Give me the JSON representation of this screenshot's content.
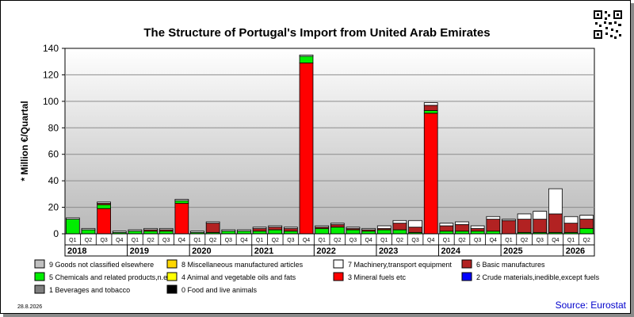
{
  "chart_data": {
    "type": "bar",
    "stacked": true,
    "title": "The Structure of Portugal's Import from United Arab Emirates",
    "ylabel": "* Million €/Quartal",
    "ylim": [
      0,
      140
    ],
    "yticks": [
      0,
      20,
      40,
      60,
      80,
      100,
      120,
      140
    ],
    "grid": true,
    "source": "Source: Eurostat",
    "date": "28.8.2026",
    "years": [
      "2018",
      "2019",
      "2020",
      "2021",
      "2022",
      "2023",
      "2024",
      "2025",
      "2026"
    ],
    "categories": [
      "Q1",
      "Q2",
      "Q3",
      "Q4",
      "Q1",
      "Q2",
      "Q3",
      "Q4",
      "Q1",
      "Q2",
      "Q3",
      "Q4",
      "Q1",
      "Q2",
      "Q3",
      "Q4",
      "Q1",
      "Q2",
      "Q3",
      "Q4",
      "Q1",
      "Q2",
      "Q3",
      "Q4",
      "Q1",
      "Q2",
      "Q3",
      "Q4",
      "Q1",
      "Q2",
      "Q3",
      "Q4",
      "Q1",
      "Q2"
    ],
    "series": [
      {
        "name": "0 Food and live animals",
        "color": "#000000",
        "values": [
          0,
          0,
          0,
          0,
          0,
          0,
          0,
          0,
          0,
          0,
          0,
          0,
          0,
          0,
          0,
          0,
          0,
          0,
          0,
          0,
          0,
          0,
          0,
          0,
          0,
          0,
          0,
          0,
          0,
          0,
          0,
          0,
          0,
          0
        ]
      },
      {
        "name": "1 Beverages and tobacco",
        "color": "#7f7f7f",
        "values": [
          0,
          0,
          0,
          0,
          0,
          0,
          0,
          0,
          0,
          0,
          0,
          0,
          0,
          0,
          0,
          0,
          0,
          0,
          0,
          0,
          0,
          0,
          0,
          0,
          0,
          0,
          0,
          0,
          0,
          0,
          0,
          0,
          0,
          0
        ]
      },
      {
        "name": "2 Crude materials,inedible,except fuels",
        "color": "#0000ff",
        "values": [
          0,
          0,
          0,
          0,
          0,
          0,
          0,
          0,
          0,
          0,
          0,
          0,
          0,
          0,
          0,
          0,
          0,
          0,
          0,
          0,
          0,
          0,
          0,
          0,
          0,
          0,
          0,
          0,
          0,
          0,
          0,
          0,
          0,
          0
        ]
      },
      {
        "name": "3 Mineral fuels etc",
        "color": "#ff0000",
        "values": [
          0,
          0,
          19,
          0,
          0,
          0,
          0,
          23,
          0,
          0,
          0,
          0,
          0,
          0,
          0,
          129,
          0,
          0,
          0,
          0,
          0,
          0,
          0,
          91,
          0,
          0,
          0,
          0,
          0,
          0,
          0,
          0,
          0,
          0
        ]
      },
      {
        "name": "4 Animal and vegetable oils and fats",
        "color": "#ffff00",
        "values": [
          0,
          0,
          0,
          0,
          0,
          0,
          0,
          0,
          0,
          0,
          0,
          0,
          0,
          0,
          0,
          0,
          0,
          0,
          0,
          0,
          0,
          0,
          0,
          0,
          0,
          0,
          0,
          0,
          0,
          0,
          0,
          0,
          0,
          0
        ]
      },
      {
        "name": "5 Chemicals and related products,n.e.s.",
        "color": "#00ee00",
        "values": [
          11,
          3,
          3,
          1,
          2,
          2,
          2,
          2,
          1,
          1,
          2,
          2,
          2,
          3,
          2,
          5,
          4,
          5,
          3,
          2,
          3,
          3,
          1,
          2,
          2,
          2,
          2,
          2,
          0,
          1,
          1,
          1,
          1,
          4
        ]
      },
      {
        "name": "6 Basic manufactures",
        "color": "#b22222",
        "values": [
          0,
          0,
          1,
          0,
          0,
          1,
          1,
          0,
          0,
          7,
          0,
          0,
          2,
          2,
          2,
          0,
          1,
          2,
          1,
          1,
          1,
          5,
          4,
          4,
          4,
          5,
          2,
          9,
          10,
          10,
          10,
          14,
          7,
          7
        ]
      },
      {
        "name": "7 Machinery,transport equipment",
        "color": "#ffffff",
        "values": [
          1,
          1,
          1,
          1,
          1,
          1,
          1,
          1,
          1,
          1,
          1,
          1,
          1,
          1,
          1,
          1,
          1,
          1,
          1,
          1,
          2,
          2,
          5,
          2,
          2,
          2,
          2,
          2,
          1,
          4,
          6,
          19,
          5,
          3
        ]
      },
      {
        "name": "8 Miscellaneous manufactured articles",
        "color": "#ffd700",
        "values": [
          0,
          0,
          0,
          0,
          0,
          0,
          0,
          0,
          0,
          0,
          0,
          0,
          0,
          0,
          0,
          0,
          0,
          0,
          0,
          0,
          0,
          0,
          0,
          0,
          0,
          0,
          0,
          0,
          0,
          0,
          0,
          0,
          0,
          0
        ]
      },
      {
        "name": "9 Goods not classified elsewhere",
        "color": "#c0c0c0",
        "values": [
          0,
          0,
          0,
          0,
          0,
          0,
          0,
          0,
          0,
          0,
          0,
          0,
          0,
          0,
          0,
          0,
          0,
          0,
          0,
          0,
          0,
          0,
          0,
          0,
          0,
          0,
          0,
          0,
          0,
          0,
          0,
          0,
          0,
          0
        ]
      }
    ],
    "legend_order": [
      9,
      8,
      7,
      6,
      5,
      4,
      3,
      2,
      1,
      0
    ]
  }
}
